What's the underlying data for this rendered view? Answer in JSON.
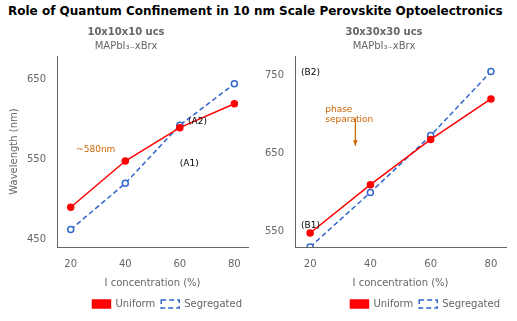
{
  "title": "Role of Quantum Confinement in 10 nm Scale Perovskite Optoelectronics",
  "chart_data": [
    {
      "type": "line",
      "title": "10x10x10 ucs",
      "subtitle": "MAPbI₃₋xBrx",
      "x_label": "I concentration (%)",
      "y_label": "Wavelength (nm)",
      "x": [
        20,
        40,
        60,
        80
      ],
      "series": [
        {
          "name": "Uniform",
          "color": "red",
          "marker": "circle",
          "line_style": "solid",
          "values": [
            490,
            548,
            590,
            620
          ]
        },
        {
          "name": "Segregated",
          "color": "#3366cc",
          "marker": "open_circle",
          "line_style": "dashed",
          "values": [
            462,
            520,
            593,
            645
          ]
        }
      ],
      "xlim": [
        15,
        85
      ],
      "xticks": [
        20,
        40,
        60,
        80
      ],
      "ylim": [
        440,
        680
      ],
      "yticks": [
        450,
        550,
        650
      ],
      "grid": false,
      "legend": "lower right",
      "annotations": [
        {
          "text": "(A1)",
          "x": 60,
          "y": 545,
          "color": "black"
        },
        {
          "text": "(A2)",
          "x": 63,
          "y": 597,
          "color": "black"
        },
        {
          "text": "~580nm",
          "x": 22,
          "y": 562,
          "color": "#cc6600"
        }
      ]
    },
    {
      "type": "line",
      "title": "30x30x30 ucs",
      "subtitle": "MAPbI₃₋xBrx",
      "x_label": "I concentration (%)",
      "x": [
        20,
        40,
        60,
        80
      ],
      "series": [
        {
          "name": "Uniform",
          "color": "red",
          "marker": "circle",
          "line_style": "solid",
          "values": [
            548,
            610,
            668,
            720
          ]
        },
        {
          "name": "Segregated",
          "color": "#3366cc",
          "marker": "open_circle",
          "line_style": "dashed",
          "values": [
            530,
            600,
            673,
            755
          ]
        }
      ],
      "xlim": [
        15,
        85
      ],
      "xticks": [
        20,
        40,
        60,
        80
      ],
      "ylim": [
        530,
        775
      ],
      "yticks": [
        550,
        650,
        750
      ],
      "grid": false,
      "legend": "lower right",
      "annotations": [
        {
          "text": "phase\nseparation",
          "x": 25,
          "y": 700,
          "color": "#cc6600"
        },
        {
          "text": "(B1)",
          "x": 17,
          "y": 558,
          "color": "black"
        },
        {
          "text": "(B2)",
          "x": 17,
          "y": 754,
          "color": "black"
        }
      ],
      "arrows": [
        {
          "from": [
            35,
            695
          ],
          "to": [
            35,
            660
          ],
          "color": "#cc6600"
        }
      ]
    }
  ]
}
